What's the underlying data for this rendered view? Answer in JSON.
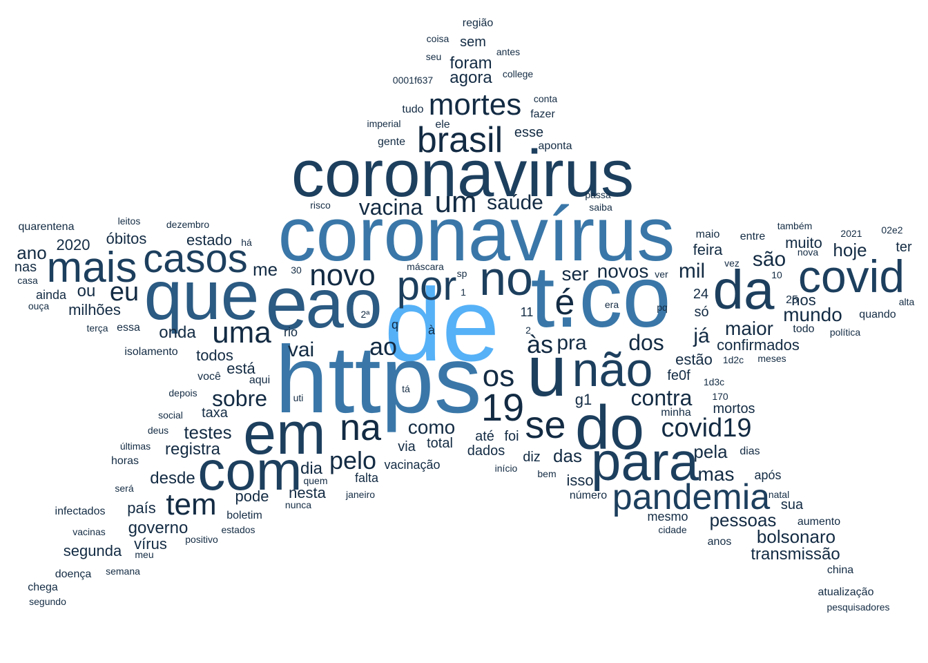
{
  "colors": {
    "background": "#ffffff",
    "darkest": "#132B43",
    "dark": "#1D3F5E",
    "mid": "#2B5A82",
    "midlight": "#3A77A8",
    "light": "#56B1F7"
  },
  "words": [
    {
      "text": "de",
      "weight": 1.0
    },
    {
      "text": "https",
      "weight": 0.95
    },
    {
      "text": "t.co",
      "weight": 0.92
    },
    {
      "text": "coronavírus",
      "weight": 0.9
    },
    {
      "text": "e",
      "weight": 0.82
    },
    {
      "text": "ao",
      "weight": 0.8
    },
    {
      "text": "que",
      "weight": 0.78
    },
    {
      "text": "u",
      "weight": 0.78
    },
    {
      "text": "em",
      "weight": 0.75
    },
    {
      "text": "coronavirus",
      "weight": 0.72
    },
    {
      "text": "do",
      "weight": 0.72
    },
    {
      "text": "da",
      "weight": 0.65
    },
    {
      "text": "com",
      "weight": 0.62
    },
    {
      "text": "para",
      "weight": 0.62
    },
    {
      "text": "no",
      "weight": 0.6
    },
    {
      "text": "não",
      "weight": 0.58
    },
    {
      "text": "covid",
      "weight": 0.57
    },
    {
      "text": "mais",
      "weight": 0.55
    },
    {
      "text": "por",
      "weight": 0.53
    },
    {
      "text": "casos",
      "weight": 0.5
    },
    {
      "text": "pandemia",
      "weight": 0.48
    },
    {
      "text": "brasil",
      "weight": 0.47
    },
    {
      "text": "19",
      "weight": 0.47
    },
    {
      "text": "se",
      "weight": 0.46
    },
    {
      "text": "na",
      "weight": 0.45
    },
    {
      "text": "é",
      "weight": 0.44
    },
    {
      "text": "mortes",
      "weight": 0.43
    },
    {
      "text": "uma",
      "weight": 0.41
    },
    {
      "text": "tem",
      "weight": 0.41
    },
    {
      "text": "novo",
      "weight": 0.4
    },
    {
      "text": "os",
      "weight": 0.4
    },
    {
      "text": "um",
      "weight": 0.4
    },
    {
      "text": "covid19",
      "weight": 0.36
    },
    {
      "text": "eu",
      "weight": 0.35
    },
    {
      "text": "às",
      "weight": 0.35
    },
    {
      "text": "pelo",
      "weight": 0.34
    },
    {
      "text": "ao",
      "weight": 0.33
    },
    {
      "text": "dos",
      "weight": 0.33
    },
    {
      "text": "contra",
      "weight": 0.33
    },
    {
      "text": "sobre",
      "weight": 0.33
    },
    {
      "text": "vacina",
      "weight": 0.32
    },
    {
      "text": "saúde",
      "weight": 0.3
    },
    {
      "text": "já",
      "weight": 0.3
    },
    {
      "text": "mil",
      "weight": 0.3
    },
    {
      "text": "são",
      "weight": 0.28
    },
    {
      "text": "vai",
      "weight": 0.28
    },
    {
      "text": "pra",
      "weight": 0.27
    },
    {
      "text": "ser",
      "weight": 0.27
    },
    {
      "text": "novos",
      "weight": 0.27
    },
    {
      "text": "como",
      "weight": 0.27
    },
    {
      "text": "mas",
      "weight": 0.26
    },
    {
      "text": "maior",
      "weight": 0.26
    },
    {
      "text": "mundo",
      "weight": 0.26
    },
    {
      "text": "pessoas",
      "weight": 0.26
    },
    {
      "text": "bolsonaro",
      "weight": 0.26
    },
    {
      "text": "testes",
      "weight": 0.25
    },
    {
      "text": "hoje",
      "weight": 0.25
    },
    {
      "text": "das",
      "weight": 0.25
    },
    {
      "text": "pela",
      "weight": 0.25
    },
    {
      "text": "me",
      "weight": 0.25
    },
    {
      "text": "ano",
      "weight": 0.25
    },
    {
      "text": "ou",
      "weight": 0.24
    },
    {
      "text": "governo",
      "weight": 0.24
    },
    {
      "text": "transmissão",
      "weight": 0.24
    },
    {
      "text": "desde",
      "weight": 0.24
    },
    {
      "text": "registra",
      "weight": 0.24
    },
    {
      "text": "dia",
      "weight": 0.24
    },
    {
      "text": "onda",
      "weight": 0.24
    },
    {
      "text": "g1",
      "weight": 0.23
    },
    {
      "text": "isso",
      "weight": 0.23
    },
    {
      "text": "óbitos",
      "weight": 0.23
    },
    {
      "text": "2020",
      "weight": 0.23
    },
    {
      "text": "agora",
      "weight": 0.23
    },
    {
      "text": "foram",
      "weight": 0.23
    },
    {
      "text": "pode",
      "weight": 0.22
    },
    {
      "text": "nesta",
      "weight": 0.22
    },
    {
      "text": "segunda",
      "weight": 0.22
    },
    {
      "text": "feira",
      "weight": 0.22
    },
    {
      "text": "estado",
      "weight": 0.22
    },
    {
      "text": "milhões",
      "weight": 0.22
    },
    {
      "text": "país",
      "weight": 0.22
    },
    {
      "text": "nos",
      "weight": 0.22
    },
    {
      "text": "vírus",
      "weight": 0.22
    },
    {
      "text": "está",
      "weight": 0.21
    },
    {
      "text": "estão",
      "weight": 0.21
    },
    {
      "text": "confirmados",
      "weight": 0.21
    },
    {
      "text": "muito",
      "weight": 0.21
    },
    {
      "text": "sem",
      "weight": 0.21
    },
    {
      "text": "todos",
      "weight": 0.21
    },
    {
      "text": "diz",
      "weight": 0.2
    },
    {
      "text": "24",
      "weight": 0.2
    },
    {
      "text": "só",
      "weight": 0.2
    },
    {
      "text": "nas",
      "weight": 0.2
    },
    {
      "text": "esse",
      "weight": 0.2
    },
    {
      "text": "foi",
      "weight": 0.2
    },
    {
      "text": "até",
      "weight": 0.2
    },
    {
      "text": "ter",
      "weight": 0.2
    },
    {
      "text": "taxa",
      "weight": 0.2
    },
    {
      "text": "fe0f",
      "weight": 0.2
    },
    {
      "text": "mortos",
      "weight": 0.2
    },
    {
      "text": "total",
      "weight": 0.2
    },
    {
      "text": "dados",
      "weight": 0.2
    },
    {
      "text": "via",
      "weight": 0.2
    },
    {
      "text": "sua",
      "weight": 0.2
    },
    {
      "text": "após",
      "weight": 0.19
    },
    {
      "text": "ainda",
      "weight": 0.19
    },
    {
      "text": "falta",
      "weight": 0.19
    },
    {
      "text": "vacinação",
      "weight": 0.19
    },
    {
      "text": "mesmo",
      "weight": 0.19
    },
    {
      "text": "11",
      "weight": 0.19
    },
    {
      "text": "q",
      "weight": 0.19
    },
    {
      "text": "à",
      "weight": 0.19
    },
    {
      "text": "rio",
      "weight": 0.19
    },
    {
      "text": "25",
      "weight": 0.18
    },
    {
      "text": "boletim",
      "weight": 0.18
    },
    {
      "text": "aumento",
      "weight": 0.18
    },
    {
      "text": "anos",
      "weight": 0.18
    },
    {
      "text": "dias",
      "weight": 0.18
    },
    {
      "text": "você",
      "weight": 0.18
    },
    {
      "text": "fazer",
      "weight": 0.18
    },
    {
      "text": "aponta",
      "weight": 0.18
    },
    {
      "text": "ele",
      "weight": 0.18
    },
    {
      "text": "tudo",
      "weight": 0.18
    },
    {
      "text": "gente",
      "weight": 0.18
    },
    {
      "text": "número",
      "weight": 0.17
    },
    {
      "text": "todo",
      "weight": 0.17
    },
    {
      "text": "minha",
      "weight": 0.17
    },
    {
      "text": "essa",
      "weight": 0.17
    },
    {
      "text": "aqui",
      "weight": 0.17
    },
    {
      "text": "china",
      "weight": 0.17
    },
    {
      "text": "doença",
      "weight": 0.17
    },
    {
      "text": "chega",
      "weight": 0.17
    },
    {
      "text": "quarentena",
      "weight": 0.17
    },
    {
      "text": "atualização",
      "weight": 0.17
    },
    {
      "text": "isolamento",
      "weight": 0.17
    },
    {
      "text": "entre",
      "weight": 0.17
    },
    {
      "text": "maio",
      "weight": 0.17
    },
    {
      "text": "quando",
      "weight": 0.17
    },
    {
      "text": "infectados",
      "weight": 0.17
    },
    {
      "text": "região",
      "weight": 0.17
    },
    {
      "text": "horas",
      "weight": 0.17
    },
    {
      "text": "170",
      "weight": 0.16
    },
    {
      "text": "1d3c",
      "weight": 0.16
    },
    {
      "text": "estados",
      "weight": 0.16
    },
    {
      "text": "cidade",
      "weight": 0.16
    },
    {
      "text": "política",
      "weight": 0.16
    },
    {
      "text": "também",
      "weight": 0.16
    },
    {
      "text": "2021",
      "weight": 0.16
    },
    {
      "text": "02e2",
      "weight": 0.16
    },
    {
      "text": "pesquisadores",
      "weight": 0.16
    },
    {
      "text": "vacinas",
      "weight": 0.16
    },
    {
      "text": "0001f637",
      "weight": 0.16
    },
    {
      "text": "college",
      "weight": 0.16
    },
    {
      "text": "imperial",
      "weight": 0.16
    },
    {
      "text": "dezembro",
      "weight": 0.16
    },
    {
      "text": "depois",
      "weight": 0.16
    },
    {
      "text": "social",
      "weight": 0.16
    },
    {
      "text": "deus",
      "weight": 0.16
    },
    {
      "text": "terça",
      "weight": 0.16
    },
    {
      "text": "casa",
      "weight": 0.16
    },
    {
      "text": "ouça",
      "weight": 0.16
    },
    {
      "text": "há",
      "weight": 0.16
    },
    {
      "text": "início",
      "weight": 0.16
    },
    {
      "text": "bem",
      "weight": 0.16
    },
    {
      "text": "positivo",
      "weight": 0.16
    },
    {
      "text": "meu",
      "weight": 0.16
    },
    {
      "text": "segundo",
      "weight": 0.16
    },
    {
      "text": "semana",
      "weight": 0.16
    },
    {
      "text": "será",
      "weight": 0.16
    },
    {
      "text": "últimas",
      "weight": 0.16
    },
    {
      "text": "quem",
      "weight": 0.16
    },
    {
      "text": "nunca",
      "weight": 0.16
    },
    {
      "text": "janeiro",
      "weight": 0.16
    },
    {
      "text": "uti",
      "weight": 0.16
    },
    {
      "text": "tá",
      "weight": 0.16
    },
    {
      "text": "2ª",
      "weight": 0.16
    },
    {
      "text": "máscara",
      "weight": 0.16
    },
    {
      "text": "30",
      "weight": 0.16
    },
    {
      "text": "risco",
      "weight": 0.16
    },
    {
      "text": "leitos",
      "weight": 0.16
    },
    {
      "text": "passa",
      "weight": 0.16
    },
    {
      "text": "saiba",
      "weight": 0.16
    },
    {
      "text": "conta",
      "weight": 0.16
    },
    {
      "text": "coisa",
      "weight": 0.16
    },
    {
      "text": "seu",
      "weight": 0.16
    },
    {
      "text": "antes",
      "weight": 0.16
    },
    {
      "text": "natal",
      "weight": 0.16
    },
    {
      "text": "meses",
      "weight": 0.16
    },
    {
      "text": "1d2c",
      "weight": 0.16
    },
    {
      "text": "nova",
      "weight": 0.16
    },
    {
      "text": "vez",
      "weight": 0.16
    },
    {
      "text": "10",
      "weight": 0.16
    },
    {
      "text": "era",
      "weight": 0.16
    },
    {
      "text": "pq",
      "weight": 0.16
    },
    {
      "text": "ver",
      "weight": 0.16
    },
    {
      "text": "alta",
      "weight": 0.16
    },
    {
      "text": "sp",
      "weight": 0.16
    },
    {
      "text": "1",
      "weight": 0.16
    },
    {
      "text": "2",
      "weight": 0.16
    }
  ]
}
